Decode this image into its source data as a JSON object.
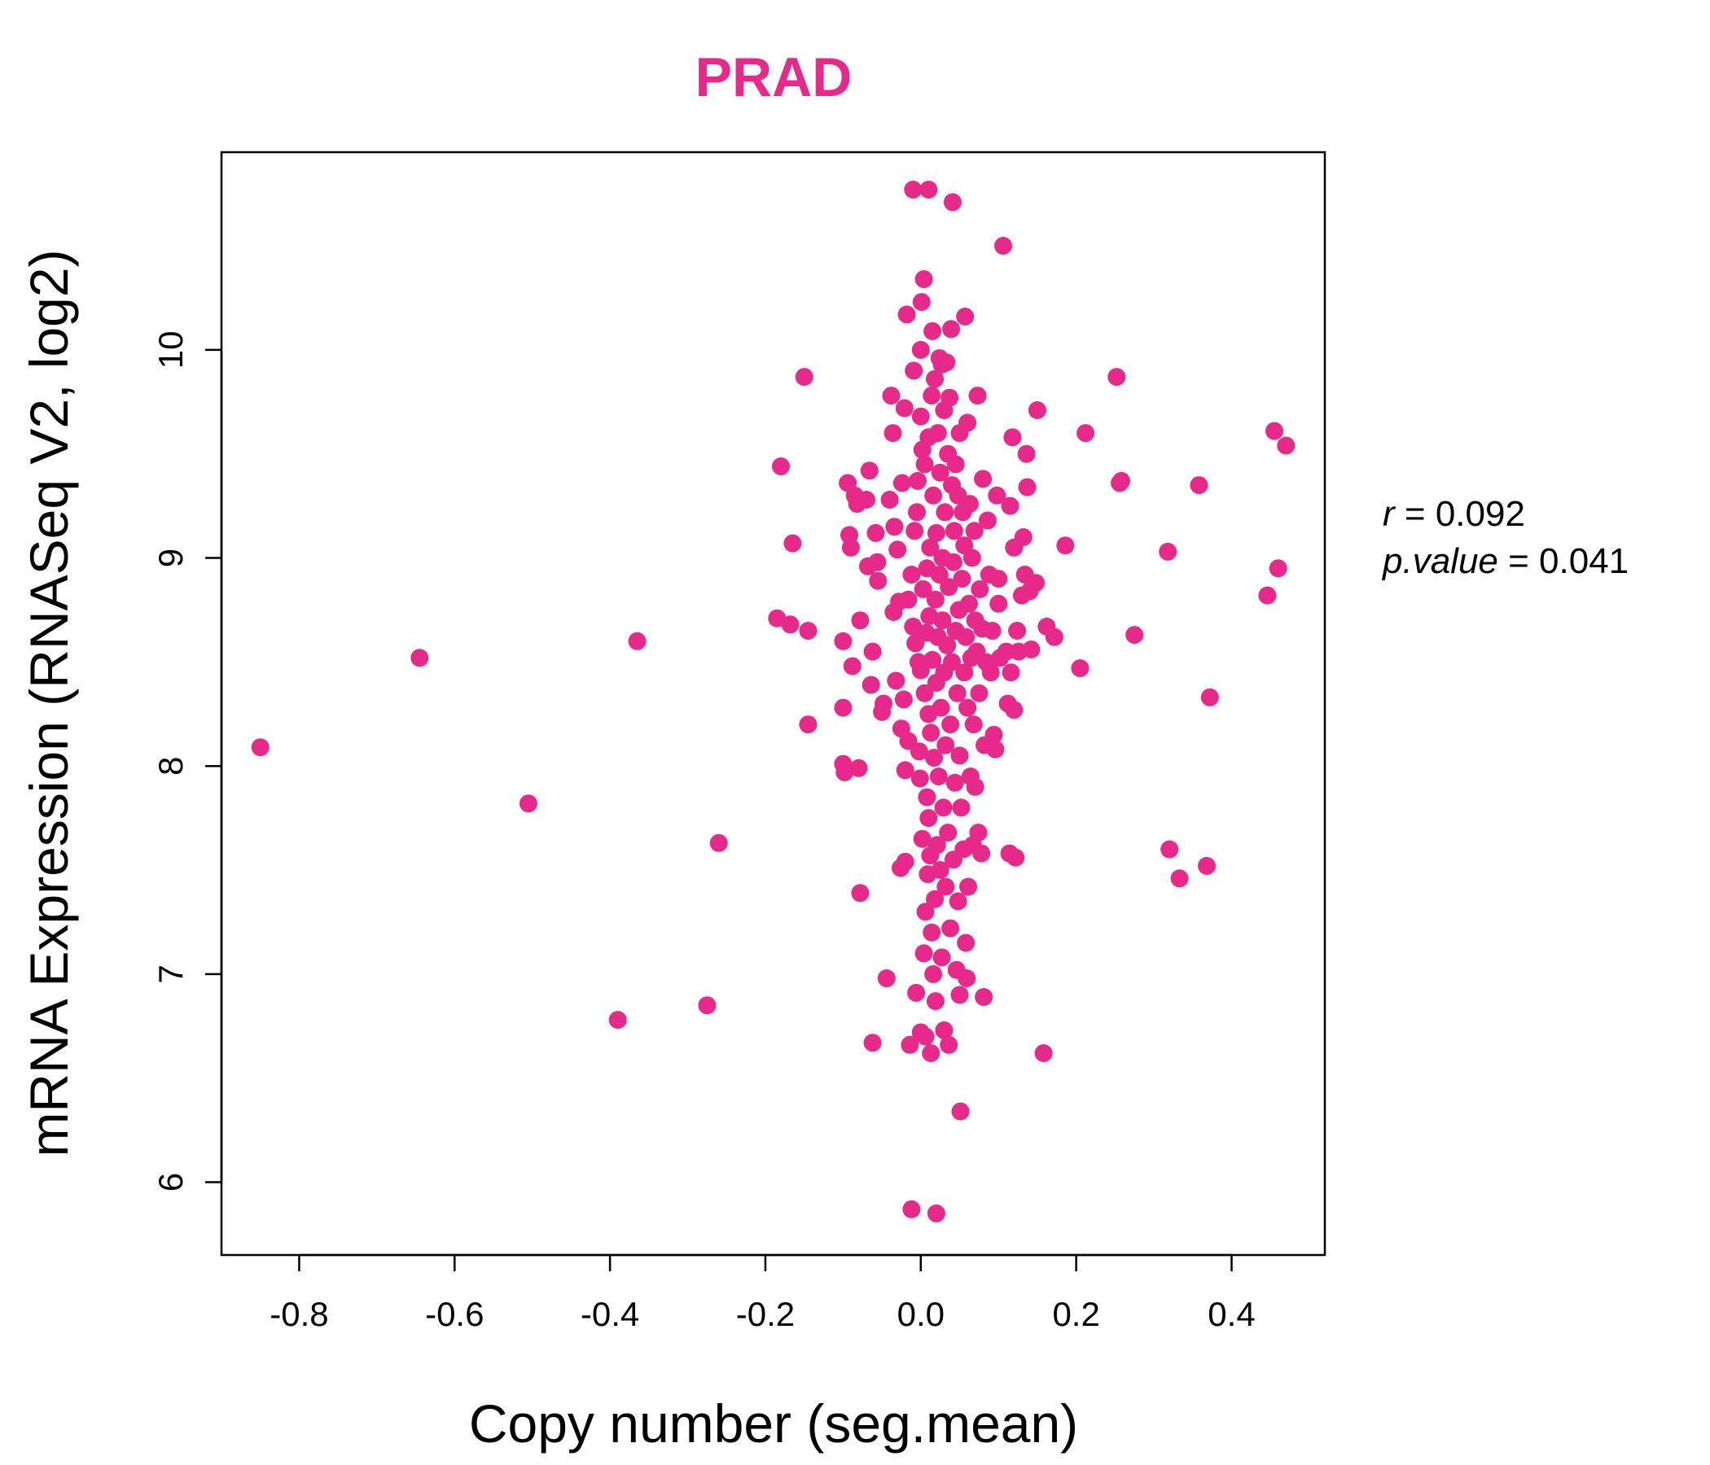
{
  "chart_data": {
    "type": "scatter",
    "title": "PRAD",
    "xlabel": "Copy number (seg.mean)",
    "ylabel": "mRNA Expression (RNASeq V2, log2)",
    "xlim": [
      -0.9,
      0.52
    ],
    "ylim": [
      5.65,
      10.95
    ],
    "x_ticks": [
      "-0.8",
      "-0.6",
      "-0.4",
      "-0.2",
      "0.0",
      "0.2",
      "0.4"
    ],
    "y_ticks": [
      "6",
      "7",
      "8",
      "9",
      "10"
    ],
    "grid": false,
    "color": "#E7298A",
    "stats": {
      "r_label": "r",
      "r_value": "0.092",
      "p_label": "p.value",
      "p_value": "0.041"
    },
    "points": [
      [
        -0.85,
        8.09
      ],
      [
        -0.645,
        8.52
      ],
      [
        -0.505,
        7.82
      ],
      [
        -0.39,
        6.78
      ],
      [
        -0.365,
        8.6
      ],
      [
        -0.275,
        6.85
      ],
      [
        -0.26,
        7.63
      ],
      [
        -0.185,
        8.71
      ],
      [
        -0.18,
        9.44
      ],
      [
        -0.168,
        8.68
      ],
      [
        -0.165,
        9.07
      ],
      [
        -0.15,
        9.87
      ],
      [
        -0.145,
        8.65
      ],
      [
        -0.145,
        8.2
      ],
      [
        -0.1,
        8.6
      ],
      [
        -0.1,
        8.28
      ],
      [
        -0.1,
        8.01
      ],
      [
        -0.098,
        7.97
      ],
      [
        -0.094,
        9.36
      ],
      [
        -0.092,
        9.11
      ],
      [
        -0.09,
        9.05
      ],
      [
        -0.088,
        8.48
      ],
      [
        -0.085,
        9.3
      ],
      [
        -0.082,
        9.26
      ],
      [
        -0.08,
        7.99
      ],
      [
        -0.078,
        8.7
      ],
      [
        -0.078,
        7.39
      ],
      [
        -0.07,
        9.28
      ],
      [
        -0.068,
        8.96
      ],
      [
        -0.066,
        9.42
      ],
      [
        -0.064,
        8.39
      ],
      [
        -0.062,
        8.55
      ],
      [
        -0.062,
        6.67
      ],
      [
        -0.058,
        9.12
      ],
      [
        -0.056,
        8.98
      ],
      [
        -0.055,
        8.89
      ],
      [
        -0.05,
        8.26
      ],
      [
        -0.048,
        8.3
      ],
      [
        -0.044,
        6.98
      ],
      [
        -0.04,
        9.28
      ],
      [
        -0.038,
        9.78
      ],
      [
        -0.036,
        9.6
      ],
      [
        -0.035,
        8.74
      ],
      [
        -0.034,
        9.15
      ],
      [
        -0.032,
        8.41
      ],
      [
        -0.03,
        9.04
      ],
      [
        -0.028,
        8.79
      ],
      [
        -0.026,
        7.51
      ],
      [
        -0.025,
        8.18
      ],
      [
        -0.024,
        9.36
      ],
      [
        -0.022,
        8.32
      ],
      [
        -0.021,
        9.72
      ],
      [
        -0.02,
        7.98
      ],
      [
        -0.02,
        7.54
      ],
      [
        -0.018,
        10.17
      ],
      [
        -0.016,
        8.12
      ],
      [
        -0.016,
        8.8
      ],
      [
        -0.014,
        6.66
      ],
      [
        -0.012,
        8.92
      ],
      [
        -0.012,
        5.87
      ],
      [
        -0.01,
        10.77
      ],
      [
        -0.01,
        8.67
      ],
      [
        -0.009,
        9.9
      ],
      [
        -0.008,
        9.13
      ],
      [
        -0.007,
        8.59
      ],
      [
        -0.006,
        6.91
      ],
      [
        -0.005,
        9.22
      ],
      [
        -0.004,
        9.37
      ],
      [
        -0.003,
        8.5
      ],
      [
        -0.002,
        8.07
      ],
      [
        -0.001,
        7.94
      ],
      [
        0.0,
        9.68
      ],
      [
        0.0,
        8.46
      ],
      [
        0.0,
        10.0
      ],
      [
        0.0,
        6.72
      ],
      [
        0.001,
        10.23
      ],
      [
        0.002,
        9.52
      ],
      [
        0.002,
        7.65
      ],
      [
        0.003,
        8.85
      ],
      [
        0.004,
        7.1
      ],
      [
        0.004,
        10.34
      ],
      [
        0.005,
        8.35
      ],
      [
        0.005,
        9.45
      ],
      [
        0.006,
        7.3
      ],
      [
        0.006,
        6.7
      ],
      [
        0.007,
        8.64
      ],
      [
        0.008,
        7.85
      ],
      [
        0.008,
        8.95
      ],
      [
        0.009,
        7.48
      ],
      [
        0.01,
        10.77
      ],
      [
        0.01,
        9.58
      ],
      [
        0.01,
        8.25
      ],
      [
        0.01,
        7.75
      ],
      [
        0.011,
        8.72
      ],
      [
        0.012,
        9.05
      ],
      [
        0.012,
        7.57
      ],
      [
        0.013,
        8.16
      ],
      [
        0.013,
        6.62
      ],
      [
        0.014,
        9.78
      ],
      [
        0.014,
        7.2
      ],
      [
        0.015,
        8.51
      ],
      [
        0.015,
        10.09
      ],
      [
        0.016,
        9.3
      ],
      [
        0.016,
        7.0
      ],
      [
        0.017,
        8.04
      ],
      [
        0.018,
        9.86
      ],
      [
        0.018,
        7.36
      ],
      [
        0.019,
        8.8
      ],
      [
        0.019,
        6.87
      ],
      [
        0.02,
        5.85
      ],
      [
        0.02,
        9.12
      ],
      [
        0.02,
        8.4
      ],
      [
        0.021,
        7.62
      ],
      [
        0.022,
        9.6
      ],
      [
        0.022,
        8.62
      ],
      [
        0.023,
        7.95
      ],
      [
        0.024,
        9.96
      ],
      [
        0.024,
        8.92
      ],
      [
        0.025,
        7.5
      ],
      [
        0.025,
        9.41
      ],
      [
        0.026,
        8.28
      ],
      [
        0.027,
        7.08
      ],
      [
        0.027,
        9.93
      ],
      [
        0.028,
        8.7
      ],
      [
        0.028,
        9.0
      ],
      [
        0.029,
        7.8
      ],
      [
        0.03,
        9.71
      ],
      [
        0.03,
        8.45
      ],
      [
        0.03,
        6.73
      ],
      [
        0.031,
        9.22
      ],
      [
        0.032,
        8.1
      ],
      [
        0.032,
        7.42
      ],
      [
        0.033,
        9.94
      ],
      [
        0.034,
        8.58
      ],
      [
        0.035,
        9.5
      ],
      [
        0.035,
        7.68
      ],
      [
        0.036,
        8.86
      ],
      [
        0.036,
        6.66
      ],
      [
        0.037,
        9.77
      ],
      [
        0.038,
        8.2
      ],
      [
        0.038,
        7.22
      ],
      [
        0.039,
        10.1
      ],
      [
        0.04,
        9.35
      ],
      [
        0.04,
        8.5
      ],
      [
        0.041,
        10.71
      ],
      [
        0.042,
        7.55
      ],
      [
        0.042,
        8.98
      ],
      [
        0.043,
        9.13
      ],
      [
        0.044,
        7.92
      ],
      [
        0.045,
        8.65
      ],
      [
        0.045,
        9.45
      ],
      [
        0.046,
        7.02
      ],
      [
        0.047,
        8.35
      ],
      [
        0.048,
        9.3
      ],
      [
        0.048,
        7.35
      ],
      [
        0.049,
        8.75
      ],
      [
        0.05,
        6.9
      ],
      [
        0.05,
        9.6
      ],
      [
        0.05,
        8.05
      ],
      [
        0.051,
        6.34
      ],
      [
        0.052,
        7.8
      ],
      [
        0.053,
        8.9
      ],
      [
        0.054,
        9.22
      ],
      [
        0.055,
        7.6
      ],
      [
        0.056,
        8.45
      ],
      [
        0.056,
        9.06
      ],
      [
        0.057,
        10.16
      ],
      [
        0.058,
        7.15
      ],
      [
        0.058,
        8.62
      ],
      [
        0.059,
        6.98
      ],
      [
        0.06,
        9.65
      ],
      [
        0.06,
        8.28
      ],
      [
        0.061,
        7.42
      ],
      [
        0.062,
        8.78
      ],
      [
        0.063,
        9.26
      ],
      [
        0.064,
        7.95
      ],
      [
        0.065,
        8.52
      ],
      [
        0.066,
        9.0
      ],
      [
        0.067,
        7.62
      ],
      [
        0.068,
        8.2
      ],
      [
        0.069,
        9.13
      ],
      [
        0.07,
        8.7
      ],
      [
        0.07,
        7.9
      ],
      [
        0.072,
        8.55
      ],
      [
        0.073,
        9.78
      ],
      [
        0.074,
        7.68
      ],
      [
        0.075,
        8.35
      ],
      [
        0.076,
        8.85
      ],
      [
        0.078,
        7.58
      ],
      [
        0.079,
        8.66
      ],
      [
        0.08,
        9.38
      ],
      [
        0.081,
        6.89
      ],
      [
        0.082,
        8.1
      ],
      [
        0.084,
        8.5
      ],
      [
        0.086,
        9.18
      ],
      [
        0.088,
        8.92
      ],
      [
        0.09,
        8.45
      ],
      [
        0.092,
        8.65
      ],
      [
        0.094,
        8.15
      ],
      [
        0.096,
        8.08
      ],
      [
        0.098,
        9.3
      ],
      [
        0.1,
        8.9
      ],
      [
        0.1,
        8.78
      ],
      [
        0.102,
        8.52
      ],
      [
        0.106,
        10.5
      ],
      [
        0.11,
        8.55
      ],
      [
        0.112,
        8.3
      ],
      [
        0.114,
        7.58
      ],
      [
        0.115,
        9.25
      ],
      [
        0.116,
        8.45
      ],
      [
        0.118,
        9.58
      ],
      [
        0.12,
        9.05
      ],
      [
        0.12,
        8.27
      ],
      [
        0.122,
        7.56
      ],
      [
        0.124,
        8.65
      ],
      [
        0.126,
        8.55
      ],
      [
        0.13,
        8.82
      ],
      [
        0.132,
        9.1
      ],
      [
        0.134,
        8.92
      ],
      [
        0.136,
        9.5
      ],
      [
        0.137,
        9.34
      ],
      [
        0.14,
        8.84
      ],
      [
        0.142,
        8.56
      ],
      [
        0.148,
        8.88
      ],
      [
        0.15,
        9.71
      ],
      [
        0.158,
        6.62
      ],
      [
        0.162,
        8.67
      ],
      [
        0.172,
        8.62
      ],
      [
        0.186,
        9.06
      ],
      [
        0.205,
        8.47
      ],
      [
        0.212,
        9.6
      ],
      [
        0.252,
        9.87
      ],
      [
        0.256,
        9.36
      ],
      [
        0.258,
        9.37
      ],
      [
        0.275,
        8.63
      ],
      [
        0.318,
        9.03
      ],
      [
        0.32,
        7.6
      ],
      [
        0.333,
        7.46
      ],
      [
        0.358,
        9.35
      ],
      [
        0.368,
        7.52
      ],
      [
        0.372,
        8.33
      ],
      [
        0.446,
        8.82
      ],
      [
        0.455,
        9.61
      ],
      [
        0.46,
        8.95
      ],
      [
        0.47,
        9.54
      ]
    ]
  }
}
